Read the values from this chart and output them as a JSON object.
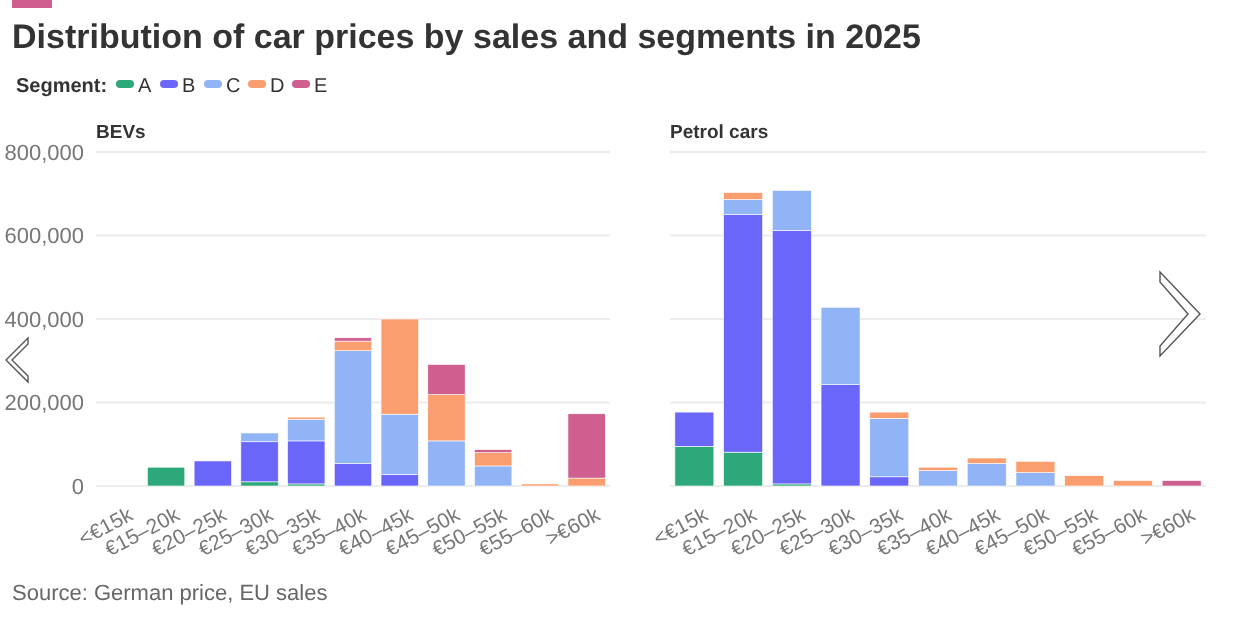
{
  "chart_data": [
    {
      "type": "bar",
      "stacked": true,
      "title": "Distribution of car prices by sales and segments in 2025",
      "subtitle": "BEVs",
      "legend_title": "Segment:",
      "legend": "top left",
      "grid": "y",
      "annotations": [
        "Source: German price, EU sales"
      ],
      "categories": [
        "<€15k",
        "€15–20k",
        "€20–25k",
        "€25–30k",
        "€30–35k",
        "€35–40k",
        "€40–45k",
        "€45–50k",
        "€50–55k",
        "€55–60k",
        ">€60k"
      ],
      "ylim": [
        0,
        800000
      ],
      "yticks": [
        {
          "value": 0,
          "label": "0"
        },
        {
          "value": 200000,
          "label": "200,000"
        },
        {
          "value": 400000,
          "label": "400,000"
        },
        {
          "value": 600000,
          "label": "600,000"
        },
        {
          "value": 800000,
          "label": "800,000"
        }
      ],
      "series": [
        {
          "name": "A",
          "color": "#2ca87a",
          "values": [
            0,
            45000,
            0,
            10000,
            5000,
            0,
            0,
            0,
            0,
            0,
            0
          ]
        },
        {
          "name": "B",
          "color": "#6b66fa",
          "values": [
            0,
            0,
            60000,
            96000,
            103000,
            54000,
            28000,
            0,
            0,
            0,
            0
          ]
        },
        {
          "name": "C",
          "color": "#90b4f5",
          "values": [
            0,
            0,
            0,
            21000,
            52000,
            270000,
            144000,
            108000,
            48000,
            0,
            0
          ]
        },
        {
          "name": "D",
          "color": "#fb9e6f",
          "values": [
            0,
            0,
            0,
            0,
            5000,
            23000,
            228000,
            111000,
            32000,
            5000,
            19000
          ]
        },
        {
          "name": "E",
          "color": "#cf5f8f",
          "values": [
            0,
            0,
            0,
            0,
            0,
            8000,
            0,
            72000,
            7000,
            0,
            154000
          ]
        }
      ]
    },
    {
      "type": "bar",
      "stacked": true,
      "title": "Petrol cars",
      "grid": "y",
      "tick_labels": "x",
      "categories": [
        "<€15k",
        "€15–20k",
        "€20–25k",
        "€25–30k",
        "€30–35k",
        "€35–40k",
        "€40–45k",
        "€45–50k",
        "€50–55k",
        "€55–60k",
        ">€60k"
      ],
      "ylim": [
        0,
        800000
      ],
      "yticks": [
        0,
        200000,
        400000,
        600000,
        800000
      ],
      "series": [
        {
          "color": "#2ca87a",
          "values": [
            95000,
            81000,
            5000,
            0,
            0,
            0,
            0,
            0,
            0,
            0,
            0
          ]
        },
        {
          "color": "#6b66fa",
          "values": [
            82000,
            569000,
            607000,
            243000,
            22000,
            0,
            0,
            0,
            0,
            0,
            0
          ]
        },
        {
          "color": "#90b4f5",
          "values": [
            0,
            36000,
            96000,
            185000,
            140000,
            37000,
            54000,
            32000,
            0,
            0,
            0
          ]
        },
        {
          "color": "#fb9e6f",
          "values": [
            0,
            17000,
            0,
            0,
            15000,
            8000,
            13000,
            27000,
            25000,
            13000,
            0
          ]
        },
        {
          "color": "#cf5f8f",
          "values": [
            0,
            0,
            0,
            0,
            0,
            0,
            0,
            0,
            0,
            0,
            13000
          ]
        }
      ]
    }
  ]
}
